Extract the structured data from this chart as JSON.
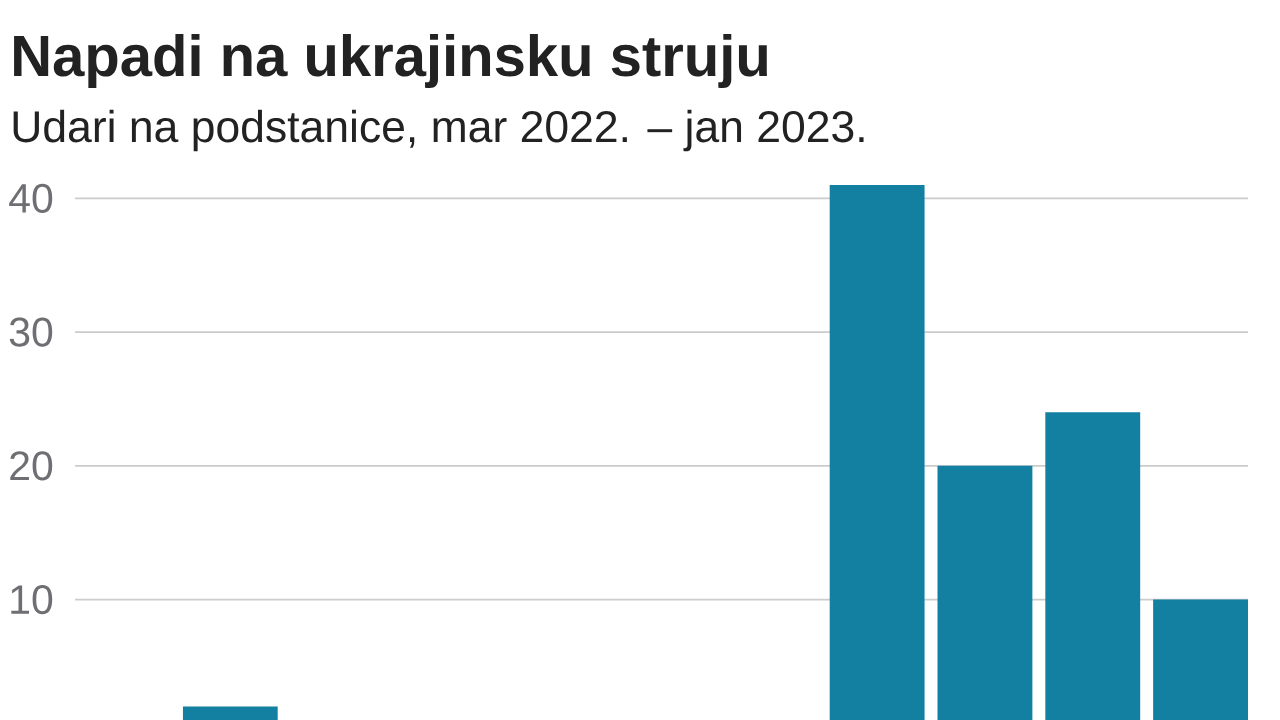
{
  "chart_data": {
    "type": "bar",
    "title": "Napadi na ukrajinsku struju",
    "subtitle": "Udari na podstanice, mar 2022. – jan 2023.",
    "categories": [
      null,
      null,
      null,
      null,
      null,
      null,
      null,
      null,
      null,
      null,
      null
    ],
    "values": [
      null,
      2,
      null,
      null,
      null,
      null,
      null,
      41,
      20,
      24,
      10
    ],
    "color": "#1380a1",
    "ylim": [
      1,
      41
    ],
    "yticks": [
      10,
      20,
      30,
      40
    ],
    "grid": "y"
  }
}
